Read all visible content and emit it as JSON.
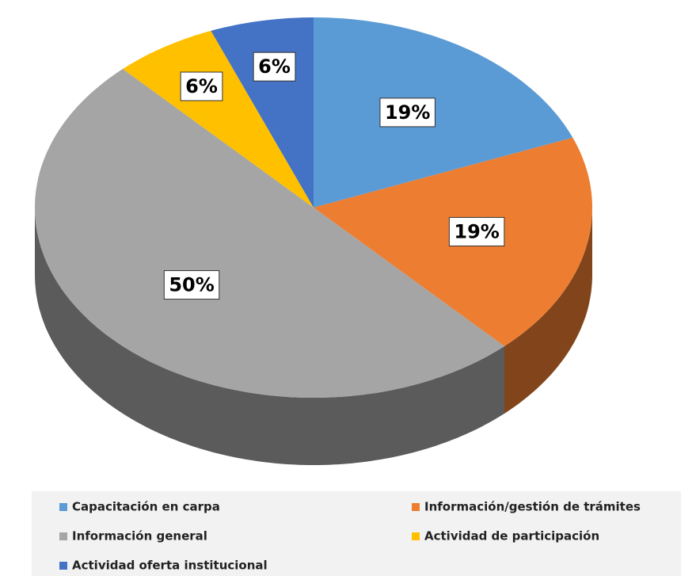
{
  "chart_data": {
    "type": "pie",
    "categories": [
      "Capacitación en carpa",
      "Información/gestión de trámites",
      "Información general",
      "Actividad de participación",
      "Actividad oferta institucional"
    ],
    "values": [
      19,
      19,
      50,
      6,
      6
    ],
    "value_labels": [
      "19%",
      "19%",
      "50%",
      "6%",
      "6%"
    ],
    "colors": [
      "#5b9bd5",
      "#ed7d31",
      "#a5a5a5",
      "#ffc000",
      "#4472c4"
    ],
    "legend": "bottom"
  }
}
